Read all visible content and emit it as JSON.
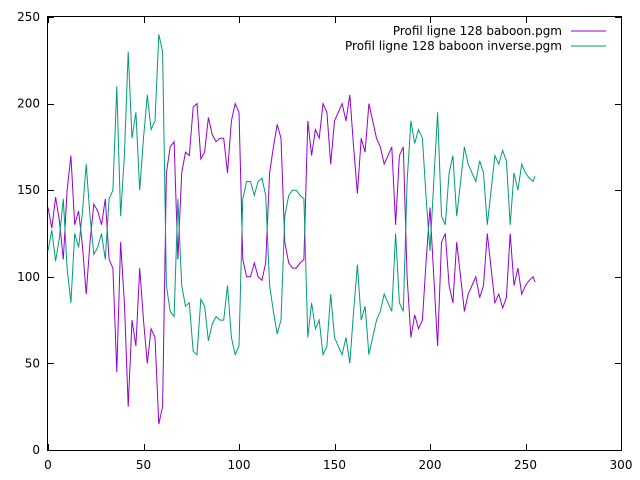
{
  "chart_data": {
    "type": "line",
    "title": "",
    "xlabel": "",
    "ylabel": "",
    "xlim": [
      0,
      300
    ],
    "ylim": [
      0,
      250
    ],
    "xticks": [
      0,
      50,
      100,
      150,
      200,
      250,
      300
    ],
    "yticks": [
      0,
      50,
      100,
      150,
      200,
      250
    ],
    "grid": false,
    "legend_position": "top-right",
    "series": [
      {
        "name": "Profil ligne 128 baboon.pgm",
        "color": "#9400d3",
        "x": [
          0,
          2,
          4,
          6,
          8,
          10,
          12,
          14,
          16,
          18,
          20,
          22,
          24,
          26,
          28,
          30,
          32,
          34,
          36,
          38,
          40,
          42,
          44,
          46,
          48,
          50,
          52,
          54,
          56,
          58,
          60,
          62,
          64,
          66,
          68,
          70,
          72,
          74,
          76,
          78,
          80,
          82,
          84,
          86,
          88,
          90,
          92,
          94,
          96,
          98,
          100,
          102,
          104,
          106,
          108,
          110,
          112,
          114,
          116,
          118,
          120,
          122,
          124,
          126,
          128,
          130,
          132,
          134,
          136,
          138,
          140,
          142,
          144,
          146,
          148,
          150,
          152,
          154,
          156,
          158,
          160,
          162,
          164,
          166,
          168,
          170,
          172,
          174,
          176,
          178,
          180,
          182,
          184,
          186,
          188,
          190,
          192,
          194,
          196,
          198,
          200,
          202,
          204,
          206,
          208,
          210,
          212,
          214,
          216,
          218,
          220,
          222,
          224,
          226,
          228,
          230,
          232,
          234,
          236,
          238,
          240,
          242,
          244,
          246,
          248,
          250,
          252,
          254,
          255
        ],
        "values": [
          140,
          128,
          146,
          132,
          110,
          150,
          170,
          130,
          138,
          118,
          90,
          120,
          142,
          138,
          130,
          145,
          110,
          105,
          45,
          120,
          85,
          25,
          75,
          60,
          105,
          75,
          50,
          70,
          65,
          15,
          25,
          160,
          175,
          178,
          110,
          160,
          172,
          170,
          198,
          200,
          168,
          172,
          192,
          182,
          178,
          180,
          180,
          160,
          190,
          200,
          195,
          110,
          100,
          100,
          108,
          100,
          98,
          108,
          160,
          175,
          188,
          180,
          120,
          108,
          105,
          105,
          108,
          110,
          190,
          170,
          185,
          180,
          200,
          195,
          165,
          190,
          195,
          200,
          190,
          205,
          175,
          148,
          180,
          172,
          200,
          190,
          180,
          175,
          165,
          170,
          175,
          130,
          170,
          175,
          100,
          65,
          78,
          70,
          75,
          110,
          140,
          100,
          60,
          120,
          125,
          95,
          85,
          120,
          100,
          80,
          90,
          95,
          100,
          88,
          95,
          125,
          105,
          85,
          90,
          82,
          88,
          125,
          95,
          105,
          90,
          95,
          98,
          100,
          97
        ],
        "notes": ""
      },
      {
        "name": "Profil ligne 128 baboon inverse.pgm",
        "color": "#009e73",
        "x": [
          0,
          2,
          4,
          6,
          8,
          10,
          12,
          14,
          16,
          18,
          20,
          22,
          24,
          26,
          28,
          30,
          32,
          34,
          36,
          38,
          40,
          42,
          44,
          46,
          48,
          50,
          52,
          54,
          56,
          58,
          60,
          62,
          64,
          66,
          68,
          70,
          72,
          74,
          76,
          78,
          80,
          82,
          84,
          86,
          88,
          90,
          92,
          94,
          96,
          98,
          100,
          102,
          104,
          106,
          108,
          110,
          112,
          114,
          116,
          118,
          120,
          122,
          124,
          126,
          128,
          130,
          132,
          134,
          136,
          138,
          140,
          142,
          144,
          146,
          148,
          150,
          152,
          154,
          156,
          158,
          160,
          162,
          164,
          166,
          168,
          170,
          172,
          174,
          176,
          178,
          180,
          182,
          184,
          186,
          188,
          190,
          192,
          194,
          196,
          198,
          200,
          202,
          204,
          206,
          208,
          210,
          212,
          214,
          216,
          218,
          220,
          222,
          224,
          226,
          228,
          230,
          232,
          234,
          236,
          238,
          240,
          242,
          244,
          246,
          248,
          250,
          252,
          254,
          255
        ],
        "values": [
          115,
          127,
          109,
          123,
          145,
          105,
          85,
          125,
          117,
          137,
          165,
          135,
          113,
          117,
          125,
          110,
          145,
          150,
          210,
          135,
          170,
          230,
          180,
          195,
          150,
          180,
          205,
          185,
          190,
          240,
          230,
          95,
          80,
          77,
          145,
          95,
          83,
          85,
          57,
          55,
          87,
          83,
          63,
          73,
          77,
          75,
          75,
          95,
          65,
          55,
          60,
          145,
          155,
          155,
          147,
          155,
          157,
          147,
          95,
          80,
          67,
          75,
          135,
          147,
          150,
          150,
          147,
          145,
          65,
          85,
          70,
          75,
          55,
          60,
          90,
          65,
          60,
          55,
          65,
          50,
          80,
          107,
          75,
          83,
          55,
          65,
          75,
          80,
          90,
          85,
          80,
          125,
          85,
          80,
          155,
          190,
          177,
          185,
          180,
          145,
          115,
          155,
          195,
          135,
          130,
          160,
          170,
          135,
          155,
          175,
          165,
          160,
          155,
          167,
          160,
          130,
          150,
          170,
          165,
          173,
          167,
          130,
          160,
          150,
          165,
          160,
          157,
          155,
          158
        ],
        "notes": ""
      }
    ]
  }
}
